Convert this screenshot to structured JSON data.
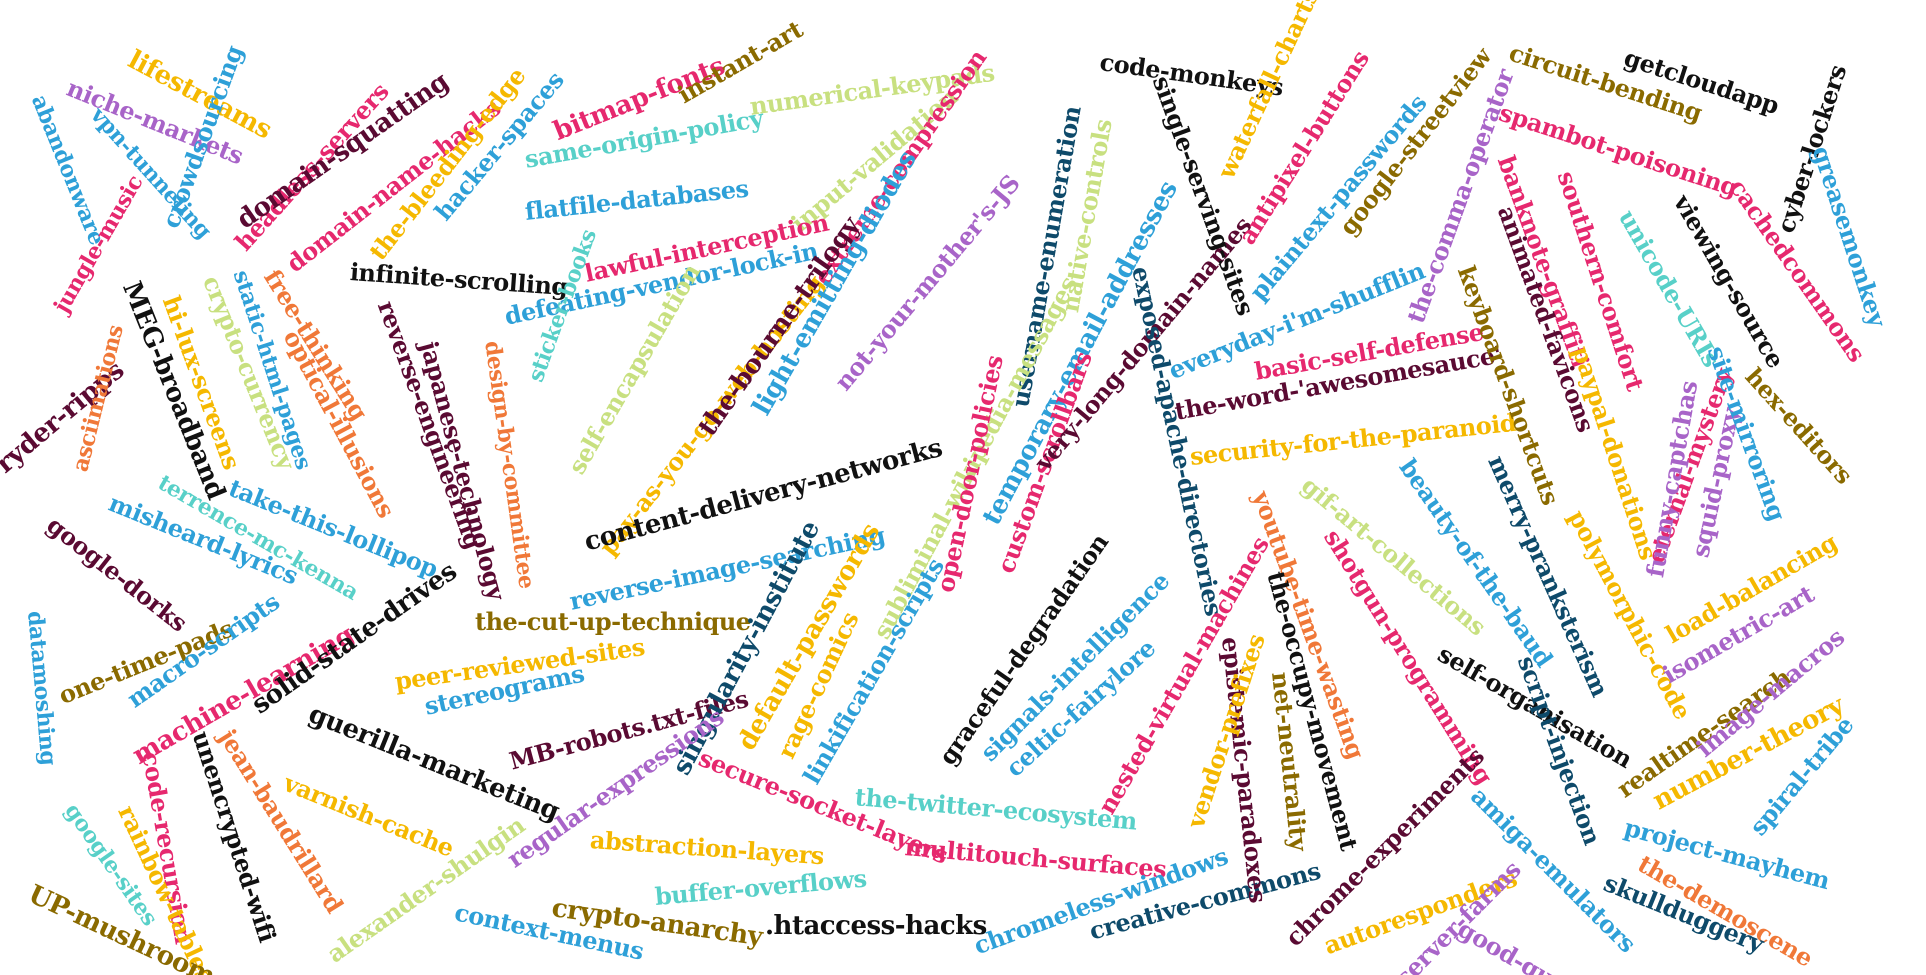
{
  "words": [
    {
      "text": "lifestreams",
      "color": "#f5b800"
    },
    {
      "text": "niche-markets",
      "color": "#a864c8"
    },
    {
      "text": "abandonware",
      "color": "#2ea0d8"
    },
    {
      "text": "vpn-tunneling",
      "color": "#2ea0d8"
    },
    {
      "text": "crowdsourcing",
      "color": "#2ea0d8"
    },
    {
      "text": "headless-servers",
      "color": "#e6286e"
    },
    {
      "text": "domain-squatting",
      "color": "#5a0a32"
    },
    {
      "text": "domain-name-hacks",
      "color": "#e6286e"
    },
    {
      "text": "the-bleeding-edge",
      "color": "#f5b800"
    },
    {
      "text": "hacker-spaces",
      "color": "#2ea0d8"
    },
    {
      "text": "bitmap-fonts",
      "color": "#e6286e"
    },
    {
      "text": "instant-art",
      "color": "#8a6a00"
    },
    {
      "text": "same-origin-policy",
      "color": "#58d0c8"
    },
    {
      "text": "numerical-keypads",
      "color": "#c8e080"
    },
    {
      "text": "flatfile-databases",
      "color": "#2ea0d8"
    },
    {
      "text": "input-validation",
      "color": "#c8e080"
    },
    {
      "text": "extreme-compression",
      "color": "#e6286e"
    },
    {
      "text": "lawful-interception",
      "color": "#e6286e"
    },
    {
      "text": "infinite-scrolling",
      "color": "#111111"
    },
    {
      "text": "defeating-vendor-lock-in",
      "color": "#2ea0d8"
    },
    {
      "text": "jungle-music",
      "color": "#e6286e"
    },
    {
      "text": "MEG-broadband",
      "color": "#111111"
    },
    {
      "text": "crypto-currency",
      "color": "#c8e080"
    },
    {
      "text": "hi-lux-screens",
      "color": "#f5b800"
    },
    {
      "text": "static-html-pages",
      "color": "#2ea0d8"
    },
    {
      "text": "free-thinking",
      "color": "#f07838"
    },
    {
      "text": "reverse-engineering",
      "color": "#5a0a32"
    },
    {
      "text": "japanese-technology",
      "color": "#5a0a32"
    },
    {
      "text": "design-by-committee",
      "color": "#f07838"
    },
    {
      "text": "sticker-books",
      "color": "#58d0c8"
    },
    {
      "text": "self-encapsulation",
      "color": "#c8e080"
    },
    {
      "text": "pay-as-you-go-web-hosting",
      "color": "#f5b800"
    },
    {
      "text": "the-bourne-trilogy",
      "color": "#5a0a32"
    },
    {
      "text": "light-emitting-diodes",
      "color": "#2ea0d8"
    },
    {
      "text": "not-your-mother's-JS",
      "color": "#a864c8"
    },
    {
      "text": "username-enumeration",
      "color": "#0e4a6a"
    },
    {
      "text": "native-controls",
      "color": "#c8e080"
    },
    {
      "text": "ryder-ripps",
      "color": "#5a0a32"
    },
    {
      "text": "asciimations",
      "color": "#f07838"
    },
    {
      "text": "optical-illusions",
      "color": "#f07838"
    },
    {
      "text": "google-dorks",
      "color": "#5a0a32"
    },
    {
      "text": "terrence-mc-kenna",
      "color": "#58d0c8"
    },
    {
      "text": "take-this-lollipop",
      "color": "#2ea0d8"
    },
    {
      "text": "misheard-lyrics",
      "color": "#2ea0d8"
    },
    {
      "text": "content-delivery-networks",
      "color": "#111111"
    },
    {
      "text": "the-cut-up-technique",
      "color": "#8a6a00"
    },
    {
      "text": "reverse-image-searching",
      "color": "#2ea0d8"
    },
    {
      "text": "subliminal-wikipedia-messages",
      "color": "#c8e080"
    },
    {
      "text": "open-door-policies",
      "color": "#e6286e"
    },
    {
      "text": "temporary-email-addresses",
      "color": "#2ea0d8"
    },
    {
      "text": "custom-scrollbars",
      "color": "#e6286e"
    },
    {
      "text": "very-long-domain-names",
      "color": "#5a0a32"
    },
    {
      "text": "one-time-pads",
      "color": "#8a6a00"
    },
    {
      "text": "macro-scripts",
      "color": "#2ea0d8"
    },
    {
      "text": "machine-learning",
      "color": "#e6286e"
    },
    {
      "text": "solid-state-drives",
      "color": "#111111"
    },
    {
      "text": "peer-reviewed-sites",
      "color": "#f5b800"
    },
    {
      "text": "stereograms",
      "color": "#2ea0d8"
    },
    {
      "text": "MB-robots.txt-files",
      "color": "#5a0a32"
    },
    {
      "text": "singularity-institute",
      "color": "#0e4a6a"
    },
    {
      "text": "default-passwords",
      "color": "#f5b800"
    },
    {
      "text": "rage-comics",
      "color": "#f5b800"
    },
    {
      "text": "linkification-scripts",
      "color": "#2ea0d8"
    },
    {
      "text": "graceful-degradation",
      "color": "#111111"
    },
    {
      "text": "signals-intelligence",
      "color": "#2ea0d8"
    },
    {
      "text": "celtic-fairylore",
      "color": "#2ea0d8"
    },
    {
      "text": "datamoshing",
      "color": "#2ea0d8"
    },
    {
      "text": "jean-baudrillard",
      "color": "#f07838"
    },
    {
      "text": "unencrypted-wifi",
      "color": "#111111"
    },
    {
      "text": "code-recursion",
      "color": "#e6286e"
    },
    {
      "text": "guerilla-marketing",
      "color": "#111111"
    },
    {
      "text": "varnish-cache",
      "color": "#f5b800"
    },
    {
      "text": "regular-expressions",
      "color": "#a864c8"
    },
    {
      "text": "secure-socket-layers",
      "color": "#e6286e"
    },
    {
      "text": "the-twitter-ecosystem",
      "color": "#58d0c8"
    },
    {
      "text": "multitouch-surfaces",
      "color": "#e6286e"
    },
    {
      "text": "abstraction-layers",
      "color": "#f5b800"
    },
    {
      "text": "buffer-overflows",
      "color": "#58d0c8"
    },
    {
      "text": "google-sites",
      "color": "#58d0c8"
    },
    {
      "text": "rainbow-tables",
      "color": "#f5b800"
    },
    {
      "text": "UP-mushroom",
      "color": "#8a6a00"
    },
    {
      "text": "alexander-shulgin",
      "color": "#c8e080"
    },
    {
      "text": "context-menus",
      "color": "#2ea0d8"
    },
    {
      "text": "crypto-anarchy",
      "color": "#8a6a00"
    },
    {
      "text": ".htaccess-hacks",
      "color": "#111111"
    },
    {
      "text": "chromeless-windows",
      "color": "#2ea0d8"
    },
    {
      "text": "creative-commons",
      "color": "#0e4a6a"
    },
    {
      "text": "code-monkeys",
      "color": "#111111"
    },
    {
      "text": "single-serving-sites",
      "color": "#111111"
    },
    {
      "text": "waterfall-charts",
      "color": "#f5b800"
    },
    {
      "text": "antipixel-buttons",
      "color": "#e6286e"
    },
    {
      "text": "plaintext-passwords",
      "color": "#2ea0d8"
    },
    {
      "text": "google-streetview",
      "color": "#8a6a00"
    },
    {
      "text": "the-comma-operator",
      "color": "#a864c8"
    },
    {
      "text": "circuit-bending",
      "color": "#8a6a00"
    },
    {
      "text": "getcloudapp",
      "color": "#111111"
    },
    {
      "text": "spambot-poisoning",
      "color": "#e6286e"
    },
    {
      "text": "cyber-lockers",
      "color": "#111111"
    },
    {
      "text": "greasemonkey",
      "color": "#2ea0d8"
    },
    {
      "text": "exposed-apache-directories",
      "color": "#0e4a6a"
    },
    {
      "text": "everyday-i'm-shufflin",
      "color": "#2ea0d8"
    },
    {
      "text": "basic-self-defense",
      "color": "#e6286e"
    },
    {
      "text": "the-word-'awesomesauce'",
      "color": "#5a0a32"
    },
    {
      "text": "security-for-the-paranoid",
      "color": "#f5b800"
    },
    {
      "text": "gif-art-collections",
      "color": "#c8e080"
    },
    {
      "text": "beauty-of-the-baud",
      "color": "#2ea0d8"
    },
    {
      "text": "banknote-graffiti",
      "color": "#e6286e"
    },
    {
      "text": "animated-favicons",
      "color": "#5a0a32"
    },
    {
      "text": "southern-comfort",
      "color": "#e6286e"
    },
    {
      "text": "unicode-URIs",
      "color": "#58d0c8"
    },
    {
      "text": "viewing-source",
      "color": "#111111"
    },
    {
      "text": "cachedcommons",
      "color": "#e6286e"
    },
    {
      "text": "keyboard-shortcuts",
      "color": "#8a6a00"
    },
    {
      "text": "merry-pranksterism",
      "color": "#0e4a6a"
    },
    {
      "text": "paypal-donations",
      "color": "#f5b800"
    },
    {
      "text": "polymorphic-code",
      "color": "#f5b800"
    },
    {
      "text": "eternal-mystery",
      "color": "#e6286e"
    },
    {
      "text": "funny-captchas",
      "color": "#a864c8"
    },
    {
      "text": "squid-proxy",
      "color": "#a864c8"
    },
    {
      "text": "site-mirroring",
      "color": "#2ea0d8"
    },
    {
      "text": "hex-editors",
      "color": "#8a6a00"
    },
    {
      "text": "load-balancing",
      "color": "#f5b800"
    },
    {
      "text": "isometric-art",
      "color": "#a864c8"
    },
    {
      "text": "youtube-time-wasting",
      "color": "#f07838"
    },
    {
      "text": "shotgun-programming",
      "color": "#e6286e"
    },
    {
      "text": "nested-virtual-machines",
      "color": "#e6286e"
    },
    {
      "text": "the-occupy-movement",
      "color": "#111111"
    },
    {
      "text": "epistemic-paradoxes",
      "color": "#5a0a32"
    },
    {
      "text": "net-neutrality",
      "color": "#8a6a00"
    },
    {
      "text": "vendor-prefixes",
      "color": "#f5b800"
    },
    {
      "text": "self-organisation",
      "color": "#111111"
    },
    {
      "text": "script-injection",
      "color": "#0e4a6a"
    },
    {
      "text": "realtime-search",
      "color": "#8a6a00"
    },
    {
      "text": "image-macros",
      "color": "#a864c8"
    },
    {
      "text": "number-theory",
      "color": "#f5b800"
    },
    {
      "text": "spiral-tribe",
      "color": "#2ea0d8"
    },
    {
      "text": "project-mayhem",
      "color": "#2ea0d8"
    },
    {
      "text": "the-demoscene",
      "color": "#f07838"
    },
    {
      "text": "skullduggery",
      "color": "#0e4a6a"
    },
    {
      "text": "chrome-experiments",
      "color": "#5a0a32"
    },
    {
      "text": "autoresponders",
      "color": "#f5b800"
    },
    {
      "text": "amiga-emulators",
      "color": "#2ea0d8"
    },
    {
      "text": "server-farms",
      "color": "#a864c8"
    },
    {
      "text": "good-quotes",
      "color": "#a864c8"
    }
  ]
}
